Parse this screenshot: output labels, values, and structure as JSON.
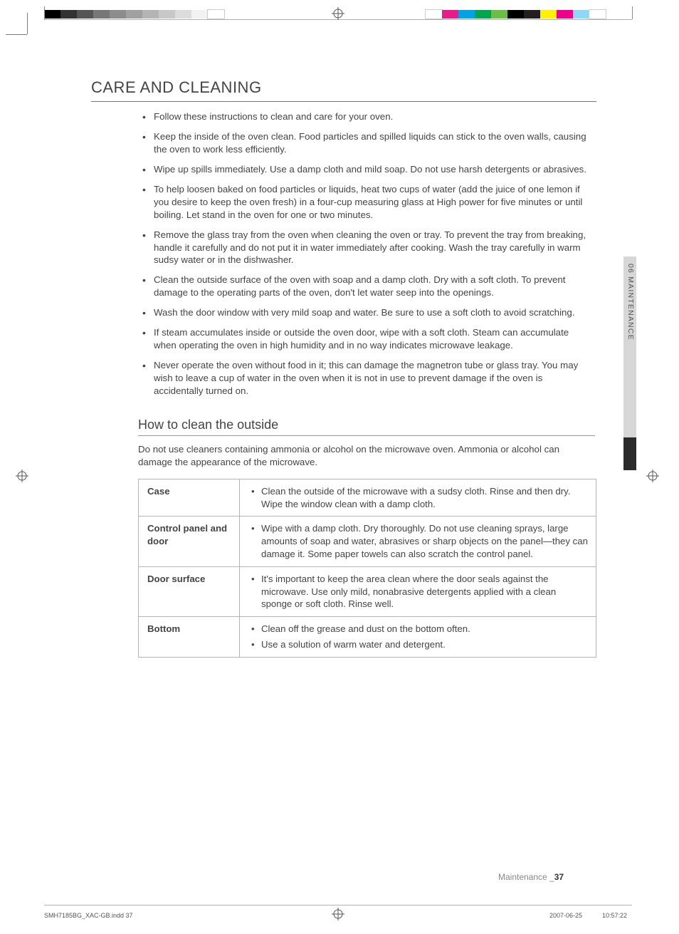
{
  "printer": {
    "left_strip": [
      "#000000",
      "#333333",
      "#555555",
      "#777777",
      "#8c8c8c",
      "#a0a0a0",
      "#b4b4b4",
      "#c8c8c8",
      "#dcdcdc",
      "#f2f2f2",
      "#ffffff"
    ],
    "right_strip": [
      "#ffffff",
      "#e71b8a",
      "#00a4e4",
      "#00a550",
      "#6cbf45",
      "#000000",
      "#231f20",
      "#fff200",
      "#ec008c",
      "#8dd7f7",
      "#ffffff"
    ],
    "filename": "SMH7185BG_XAC-GB.indd   37",
    "date": "2007-06-25",
    "time": "10:57:22"
  },
  "side_tab": {
    "label": "06   MAINTENANCE",
    "bg_color": "#d7d7d7"
  },
  "title": "CARE AND CLEANING",
  "bullets": [
    "Follow these instructions to clean and care for your oven.",
    "Keep the inside of the oven clean. Food particles and spilled liquids can stick to the oven walls, causing the oven to work less efficiently.",
    "Wipe up spills immediately. Use a damp cloth and mild soap. Do not use harsh detergents or abrasives.",
    "To help loosen baked on food particles or liquids, heat two cups of water (add the juice of one lemon if you desire to keep the oven fresh) in a four-cup measuring glass at High power for five minutes or until boiling. Let stand in the oven for one or two minutes.",
    "Remove the glass tray from the oven when cleaning the oven or tray. To prevent the tray from breaking, handle it carefully and do not put it in water immediately after cooking. Wash the tray carefully in warm sudsy water or in the dishwasher.",
    "Clean the outside surface of the oven with soap and a damp cloth. Dry with a soft cloth. To prevent damage to the operating parts of the oven, don't let water seep into the openings.",
    "Wash the door window with very mild soap and water. Be sure to use a soft cloth to avoid scratching.",
    "If steam accumulates inside or outside the oven door, wipe with a soft cloth. Steam can accumulate when operating the oven in high humidity and in no way indicates microwave leakage.",
    "Never operate the oven without food in it; this can damage the magnetron tube or glass tray. You may wish to leave a cup of water in the oven when it is not in use to prevent damage if the oven is accidentally turned on."
  ],
  "subheading": "How to clean the outside",
  "intro": "Do not use cleaners containing ammonia or alcohol on the microwave oven. Ammonia or alcohol can damage the appearance of the microwave.",
  "table": {
    "rows": [
      {
        "label": "Case",
        "items": [
          "Clean the outside of the microwave with a sudsy cloth. Rinse and then dry. Wipe the window clean with a damp cloth."
        ]
      },
      {
        "label": "Control panel and door",
        "items": [
          "Wipe with a damp cloth. Dry thoroughly. Do not use cleaning sprays, large amounts of soap and water, abrasives or sharp objects on the panel—they can damage it. Some paper towels can also scratch the control panel."
        ]
      },
      {
        "label": "Door surface",
        "items": [
          "It's important to keep the area clean where the door seals against the microwave. Use only mild, nonabrasive detergents applied with a clean sponge or soft cloth. Rinse well."
        ]
      },
      {
        "label": "Bottom",
        "items": [
          "Clean off the grease and dust on the bottom often.",
          "Use a solution of warm water and detergent."
        ]
      }
    ]
  },
  "footer": {
    "section": "Maintenance _",
    "page": "37"
  }
}
